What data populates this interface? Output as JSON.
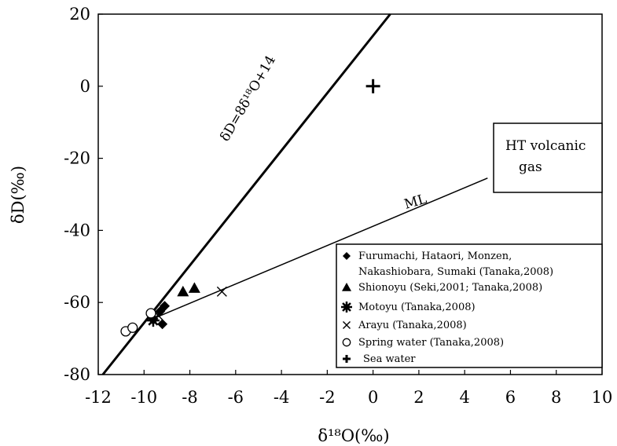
{
  "chart_data": {
    "type": "scatter",
    "title": "",
    "xlabel": "δ¹⁸O(‰)",
    "ylabel": "δD(‰)",
    "xlim": [
      -12,
      10
    ],
    "ylim": [
      -80,
      20
    ],
    "x_ticks": [
      -12,
      -10,
      -8,
      -6,
      -4,
      -2,
      0,
      2,
      4,
      6,
      8,
      10
    ],
    "y_ticks": [
      20,
      0,
      -20,
      -40,
      -60,
      -80
    ],
    "x_tick_labels": [
      "-12",
      "-10",
      "-8",
      "-6",
      "-4",
      "-2",
      "0",
      "2",
      "4",
      "6",
      "8",
      "10"
    ],
    "y_tick_labels": [
      "20",
      "0",
      "-20",
      "-40",
      "-60",
      "-80"
    ],
    "grid": false,
    "legend_position": "bottom-right",
    "series": [
      {
        "name": "Furumachi, Hataori, Monzen,",
        "name_line2": "Nakashiobara, Sumaki (Tanaka,2008)",
        "marker": "diamond",
        "points": [
          [
            -9.1,
            -61
          ],
          [
            -9.3,
            -62.5
          ],
          [
            -9.6,
            -64.5
          ],
          [
            -9.2,
            -66
          ]
        ]
      },
      {
        "name": "Shionoyu (Seki,2001; Tanaka,2008)",
        "marker": "triangle",
        "points": [
          [
            -8.3,
            -57
          ],
          [
            -7.8,
            -56
          ]
        ]
      },
      {
        "name": "Motoyu (Tanaka,2008)",
        "marker": "asterisk",
        "points": [
          [
            -9.6,
            -65
          ]
        ]
      },
      {
        "name": "Arayu (Tanaka,2008)",
        "marker": "x",
        "points": [
          [
            -6.6,
            -57
          ],
          [
            -9.4,
            -63.5
          ]
        ]
      },
      {
        "name": "Spring water (Tanaka,2008)",
        "marker": "circle-open",
        "points": [
          [
            -10.8,
            -68
          ],
          [
            -10.5,
            -67
          ],
          [
            -9.7,
            -63
          ]
        ]
      },
      {
        "name": "Sea water",
        "marker": "plus",
        "points": [
          [
            0,
            0
          ]
        ]
      }
    ],
    "lines": [
      {
        "label": "δD=8δ¹⁸O+14",
        "kind": "meteoric",
        "x1": -11.8,
        "y1": -80.4,
        "x2": 0.75,
        "y2": 20
      },
      {
        "label": "ML",
        "kind": "mixing",
        "x1": -9.6,
        "y1": -64.5,
        "x2": 5.0,
        "y2": -25.5
      }
    ],
    "annotations": [
      {
        "text_line1": "HT volcanic",
        "text_line2": "gas"
      }
    ]
  }
}
